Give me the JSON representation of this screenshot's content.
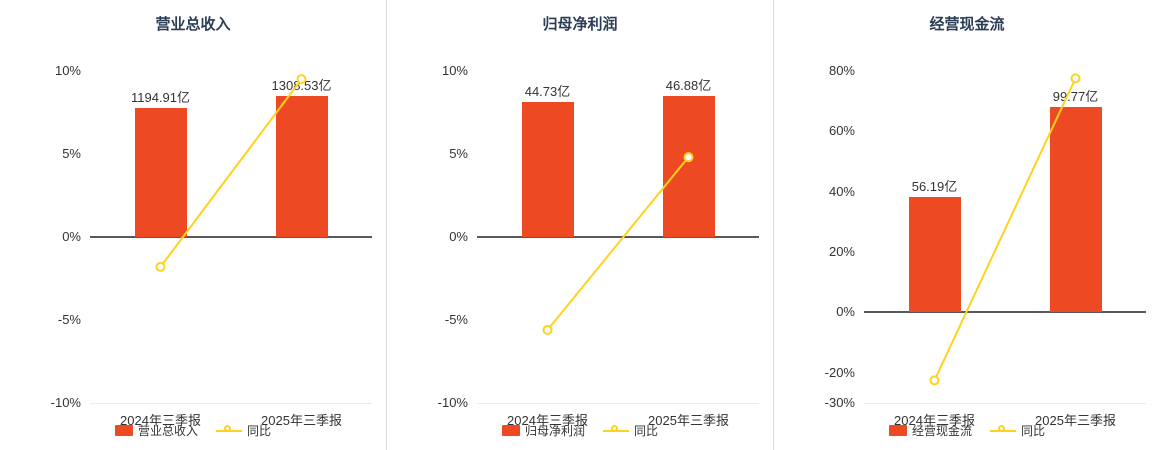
{
  "colors": {
    "bar": "#ed4a23",
    "line": "#ffd21e",
    "title": "#2c3e55",
    "text": "#333333",
    "zero_line": "#595959",
    "separator": "#dcdcdc",
    "baseline": "#ebebeb"
  },
  "chart_data": [
    {
      "type": "bar",
      "subtype": "bar+line",
      "title": "营业总收入",
      "categories": [
        "2024年三季报",
        "2025年三季报"
      ],
      "series": [
        {
          "name": "营业总收入",
          "type": "bar",
          "unit": "亿",
          "values": [
            1194.91,
            1308.53
          ],
          "labels": [
            "1194.91亿",
            "1308.53亿"
          ],
          "color": "#ed4a23"
        },
        {
          "name": "同比",
          "type": "line",
          "unit": "%",
          "values": [
            -1.8,
            9.51
          ],
          "color": "#ffd21e"
        }
      ],
      "ylim": [
        -10,
        10
      ],
      "y_ticks": [
        10,
        5,
        0,
        -5,
        -10
      ],
      "y_tick_labels": [
        "10%",
        "5%",
        "0%",
        "-5%",
        "-10%"
      ],
      "legend": [
        "营业总收入",
        "同比"
      ],
      "legend_position": "bottom",
      "grid": false
    },
    {
      "type": "bar",
      "subtype": "bar+line",
      "title": "归母净利润",
      "categories": [
        "2024年三季报",
        "2025年三季报"
      ],
      "series": [
        {
          "name": "归母净利润",
          "type": "bar",
          "unit": "亿",
          "values": [
            44.73,
            46.88
          ],
          "labels": [
            "44.73亿",
            "46.88亿"
          ],
          "color": "#ed4a23"
        },
        {
          "name": "同比",
          "type": "line",
          "unit": "%",
          "values": [
            -5.6,
            4.81
          ],
          "color": "#ffd21e"
        }
      ],
      "ylim": [
        -10,
        10
      ],
      "y_ticks": [
        10,
        5,
        0,
        -5,
        -10
      ],
      "y_tick_labels": [
        "10%",
        "5%",
        "0%",
        "-5%",
        "-10%"
      ],
      "legend": [
        "归母净利润",
        "同比"
      ],
      "legend_position": "bottom",
      "grid": false
    },
    {
      "type": "bar",
      "subtype": "bar+line",
      "title": "经营现金流",
      "categories": [
        "2024年三季报",
        "2025年三季报"
      ],
      "series": [
        {
          "name": "经营现金流",
          "type": "bar",
          "unit": "亿",
          "values": [
            56.19,
            99.77
          ],
          "labels": [
            "56.19亿",
            "99.77亿"
          ],
          "color": "#ed4a23"
        },
        {
          "name": "同比",
          "type": "line",
          "unit": "%",
          "values": [
            -22.5,
            77.56
          ],
          "color": "#ffd21e"
        }
      ],
      "ylim": [
        -30,
        80
      ],
      "y_ticks": [
        80,
        60,
        40,
        20,
        0,
        -20,
        -30
      ],
      "y_tick_labels": [
        "80%",
        "60%",
        "40%",
        "20%",
        "0%",
        "-20%",
        "-30%"
      ],
      "legend": [
        "经营现金流",
        "同比"
      ],
      "legend_position": "bottom",
      "grid": false
    }
  ]
}
